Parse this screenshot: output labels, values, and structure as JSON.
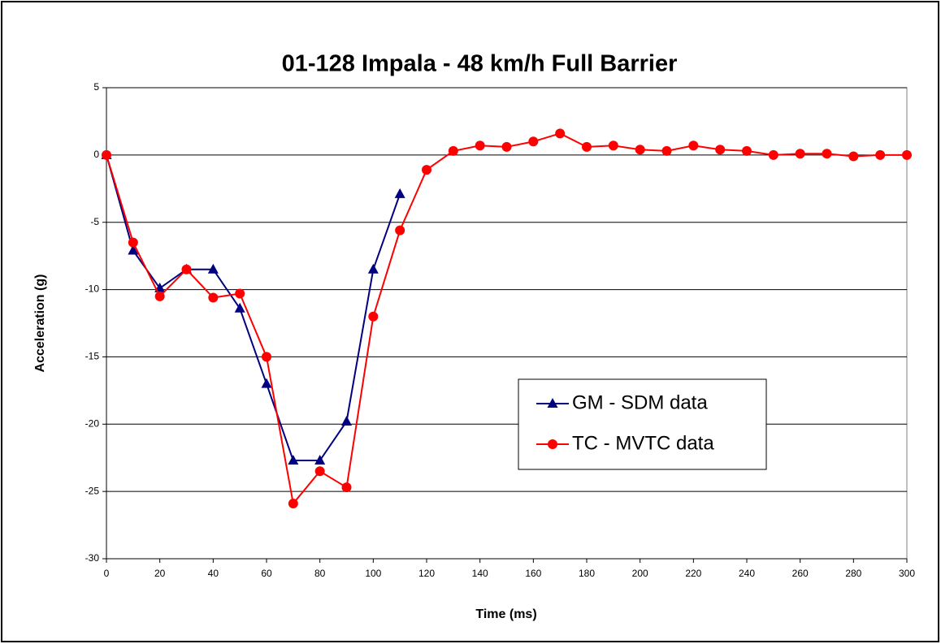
{
  "chart_data": {
    "type": "line",
    "title": "01-128 Impala  -  48 km/h Full Barrier",
    "x_label": "Time (ms)",
    "y_label": "Acceleration (g)",
    "series": [
      {
        "name": "GM - SDM data",
        "color": "#000080",
        "marker": "triangle",
        "x": [
          0,
          10,
          20,
          30,
          40,
          50,
          60,
          70,
          80,
          90,
          100,
          110
        ],
        "values": [
          0,
          -7.1,
          -9.9,
          -8.5,
          -8.5,
          -11.4,
          -17,
          -22.7,
          -22.7,
          -19.8,
          -8.5,
          -2.9
        ]
      },
      {
        "name": "TC - MVTC data",
        "color": "#ff0000",
        "marker": "circle",
        "x": [
          0,
          10,
          20,
          30,
          40,
          50,
          60,
          70,
          80,
          90,
          100,
          110,
          120,
          130,
          140,
          150,
          160,
          170,
          180,
          190,
          200,
          210,
          220,
          230,
          240,
          250,
          260,
          270,
          280,
          290,
          300
        ],
        "values": [
          0,
          -6.5,
          -10.5,
          -8.5,
          -10.6,
          -10.3,
          -15,
          -25.9,
          -23.5,
          -24.7,
          -12,
          -5.6,
          -1.1,
          0.3,
          0.7,
          0.6,
          1.0,
          1.6,
          0.6,
          0.7,
          0.4,
          0.3,
          0.7,
          0.4,
          0.3,
          0,
          0.1,
          0.1,
          -0.1,
          0,
          0
        ]
      }
    ],
    "xlim": [
      0,
      300
    ],
    "xticks": [
      0,
      20,
      40,
      60,
      80,
      100,
      120,
      140,
      160,
      180,
      200,
      220,
      240,
      260,
      280,
      300
    ],
    "ylim": [
      -30,
      5
    ],
    "yticks": [
      5,
      0,
      -5,
      -10,
      -15,
      -20,
      -25,
      -30
    ],
    "grid": true
  }
}
